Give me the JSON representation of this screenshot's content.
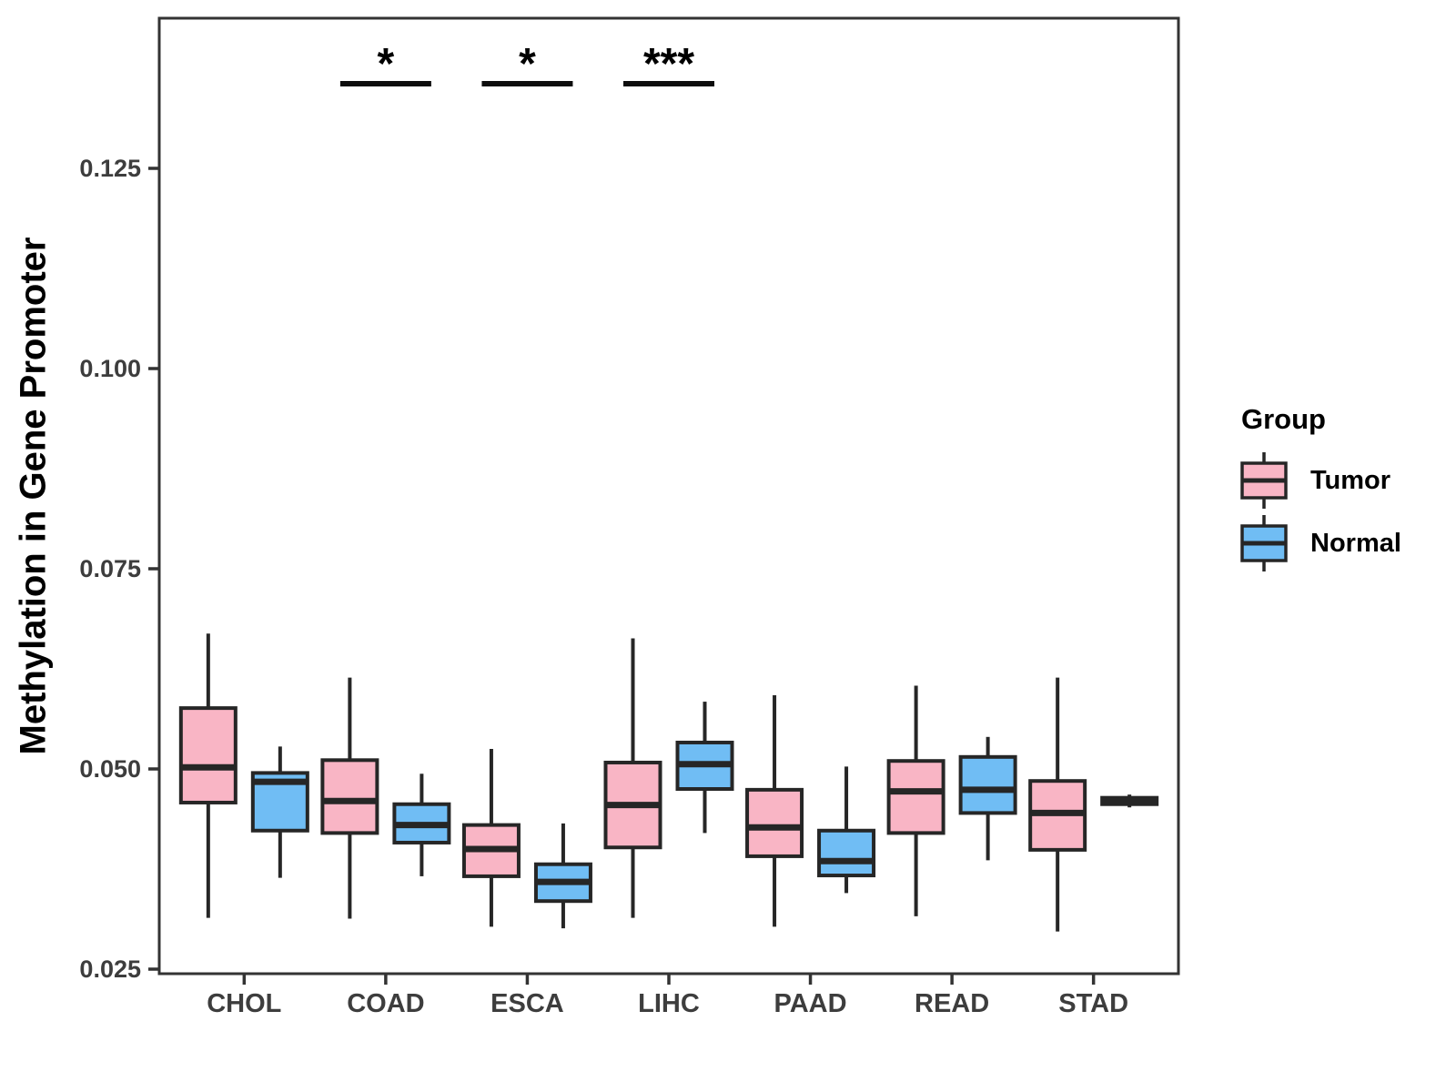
{
  "legend": {
    "title": "Group"
  },
  "chart_data": {
    "type": "grouped_boxplot",
    "title": "",
    "xlabel": "",
    "ylabel": "Methylation in Gene Promoter",
    "categories": [
      "CHOL",
      "COAD",
      "ESCA",
      "LIHC",
      "PAAD",
      "READ",
      "STAD"
    ],
    "y_ticks": {
      "values": [
        0.025,
        0.05,
        0.075,
        0.1,
        0.125
      ],
      "labels": [
        "0.025",
        "0.050",
        "0.075",
        "0.100",
        "0.125"
      ]
    },
    "ylim": [
      0.0244,
      0.1437
    ],
    "grid": false,
    "legend_position": "right",
    "stroke_color": "#262626",
    "series": [
      {
        "name": "Tumor",
        "color": "#F9B5C5",
        "boxes": [
          {
            "category": "CHOL",
            "min": 0.0314,
            "q1": 0.0458,
            "median": 0.0502,
            "q3": 0.0576,
            "max": 0.0669
          },
          {
            "category": "COAD",
            "min": 0.0313,
            "q1": 0.042,
            "median": 0.046,
            "q3": 0.0511,
            "max": 0.0614
          },
          {
            "category": "ESCA",
            "min": 0.0303,
            "q1": 0.0366,
            "median": 0.04,
            "q3": 0.043,
            "max": 0.0525
          },
          {
            "category": "LIHC",
            "min": 0.0314,
            "q1": 0.0402,
            "median": 0.0455,
            "q3": 0.0508,
            "max": 0.0663
          },
          {
            "category": "PAAD",
            "min": 0.0303,
            "q1": 0.0391,
            "median": 0.0427,
            "q3": 0.0474,
            "max": 0.0592
          },
          {
            "category": "READ",
            "min": 0.0316,
            "q1": 0.042,
            "median": 0.0472,
            "q3": 0.051,
            "max": 0.0604
          },
          {
            "category": "STAD",
            "min": 0.0297,
            "q1": 0.0399,
            "median": 0.0445,
            "q3": 0.0485,
            "max": 0.0614
          }
        ]
      },
      {
        "name": "Normal",
        "color": "#70BDF4",
        "boxes": [
          {
            "category": "CHOL",
            "min": 0.0364,
            "q1": 0.0423,
            "median": 0.0484,
            "q3": 0.0495,
            "max": 0.0528
          },
          {
            "category": "COAD",
            "min": 0.0366,
            "q1": 0.0408,
            "median": 0.043,
            "q3": 0.0456,
            "max": 0.0494
          },
          {
            "category": "ESCA",
            "min": 0.0301,
            "q1": 0.0335,
            "median": 0.0359,
            "q3": 0.0381,
            "max": 0.0432
          },
          {
            "category": "LIHC",
            "min": 0.042,
            "q1": 0.0475,
            "median": 0.0506,
            "q3": 0.0533,
            "max": 0.0584
          },
          {
            "category": "PAAD",
            "min": 0.0345,
            "q1": 0.0367,
            "median": 0.0385,
            "q3": 0.0423,
            "max": 0.0503
          },
          {
            "category": "READ",
            "min": 0.0386,
            "q1": 0.0445,
            "median": 0.0474,
            "q3": 0.0515,
            "max": 0.054
          },
          {
            "category": "STAD",
            "min": 0.0452,
            "q1": 0.0456,
            "median": 0.046,
            "q3": 0.0464,
            "max": 0.0468
          }
        ]
      }
    ],
    "significance": [
      {
        "category": "COAD",
        "label": "*"
      },
      {
        "category": "ESCA",
        "label": "*"
      },
      {
        "category": "LIHC",
        "label": "***"
      }
    ]
  }
}
